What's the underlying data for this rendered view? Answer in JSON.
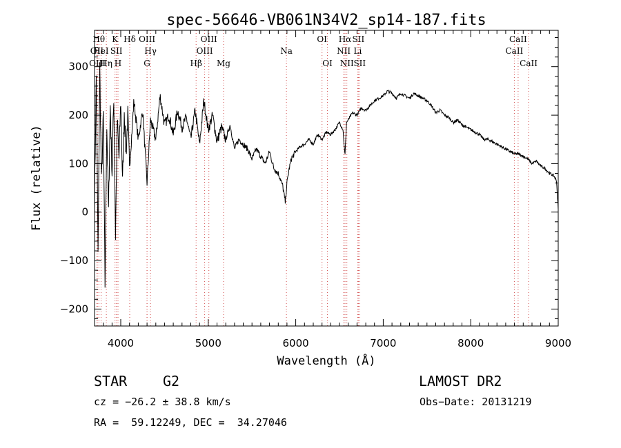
{
  "chart_data": {
    "type": "line",
    "title": "spec-56646-VB061N34V2_sp14-187.fits",
    "xlabel": "Wavelength (Å)",
    "ylabel": "Flux (relative)",
    "xlim": [
      3700,
      9000
    ],
    "ylim": [
      -235,
      375
    ],
    "xticks": [
      4000,
      5000,
      6000,
      7000,
      8000,
      9000
    ],
    "xtick_labels": [
      "4000",
      "5000",
      "6000",
      "7000",
      "8000",
      "9000"
    ],
    "yticks": [
      -200,
      -100,
      0,
      100,
      200,
      300
    ],
    "ytick_labels": [
      "−200",
      "−100",
      "0",
      "100",
      "200",
      "300"
    ],
    "grid": false,
    "series": [
      {
        "x": [
          3700,
          3720,
          3740,
          3760,
          3780,
          3800,
          3820,
          3840,
          3860,
          3880,
          3900,
          3920,
          3940,
          3960,
          3980,
          4000,
          4020,
          4040,
          4060,
          4080,
          4100,
          4150,
          4200,
          4250,
          4300,
          4340,
          4400,
          4450,
          4500,
          4550,
          4600,
          4650,
          4700,
          4750,
          4800,
          4850,
          4900,
          4950,
          5000,
          5050,
          5100,
          5150,
          5200,
          5250,
          5300,
          5350,
          5400,
          5450,
          5500,
          5550,
          5600,
          5650,
          5700,
          5750,
          5800,
          5850,
          5880,
          5900,
          5920,
          5950,
          6000,
          6050,
          6100,
          6150,
          6200,
          6250,
          6300,
          6350,
          6400,
          6450,
          6500,
          6540,
          6563,
          6580,
          6600,
          6650,
          6700,
          6750,
          6800,
          6850,
          6900,
          6950,
          7000,
          7050,
          7100,
          7150,
          7200,
          7250,
          7300,
          7350,
          7400,
          7450,
          7500,
          7550,
          7600,
          7650,
          7700,
          7750,
          7800,
          7850,
          7900,
          7950,
          8000,
          8050,
          8100,
          8150,
          8200,
          8250,
          8300,
          8350,
          8400,
          8450,
          8500,
          8550,
          8600,
          8650,
          8700,
          8750,
          8800,
          8850,
          8900,
          8950,
          8980,
          9000
        ],
        "y": [
          20,
          280,
          -90,
          300,
          60,
          200,
          -150,
          180,
          0,
          220,
          80,
          240,
          -50,
          190,
          110,
          230,
          60,
          210,
          120,
          200,
          90,
          230,
          150,
          210,
          60,
          190,
          150,
          240,
          180,
          200,
          160,
          210,
          175,
          195,
          150,
          210,
          140,
          230,
          170,
          200,
          145,
          175,
          150,
          180,
          130,
          150,
          140,
          130,
          110,
          130,
          115,
          100,
          125,
          90,
          80,
          55,
          20,
          60,
          85,
          110,
          125,
          135,
          140,
          150,
          140,
          160,
          150,
          165,
          160,
          170,
          185,
          170,
          115,
          185,
          190,
          205,
          200,
          215,
          210,
          220,
          230,
          235,
          240,
          250,
          245,
          235,
          245,
          240,
          235,
          245,
          240,
          235,
          230,
          220,
          205,
          210,
          200,
          195,
          185,
          190,
          180,
          175,
          170,
          165,
          160,
          150,
          150,
          145,
          140,
          135,
          130,
          125,
          120,
          120,
          115,
          110,
          100,
          105,
          95,
          90,
          80,
          75,
          65,
          5
        ]
      }
    ],
    "lines": [
      {
        "label": "OII",
        "x": 3727,
        "row": 1
      },
      {
        "label": "OIII",
        "x": 3732,
        "row": 2
      },
      {
        "label": "Hθ",
        "x": 3750,
        "row": 0
      },
      {
        "label": "HeI",
        "x": 3775,
        "row": 1
      },
      {
        "label": "Hη",
        "x": 3835,
        "row": 2
      },
      {
        "label": "K",
        "x": 3934,
        "row": 0
      },
      {
        "label": "SII",
        "x": 3950,
        "row": 1
      },
      {
        "label": "H",
        "x": 3968,
        "row": 2
      },
      {
        "label": "Hδ",
        "x": 4102,
        "row": 0
      },
      {
        "label": "OIII",
        "x": 4300,
        "row": 0
      },
      {
        "label": "Hγ",
        "x": 4340,
        "row": 1
      },
      {
        "label": "G",
        "x": 4300,
        "row": 2
      },
      {
        "label": "Hβ",
        "x": 4861,
        "row": 2
      },
      {
        "label": "OIII",
        "x": 4959,
        "row": 1
      },
      {
        "label": "OIII",
        "x": 5007,
        "row": 0
      },
      {
        "label": "Mg",
        "x": 5175,
        "row": 2
      },
      {
        "label": "Na",
        "x": 5893,
        "row": 1
      },
      {
        "label": "OI",
        "x": 6300,
        "row": 0
      },
      {
        "label": "OI",
        "x": 6363,
        "row": 2
      },
      {
        "label": "Hα",
        "x": 6563,
        "row": 0
      },
      {
        "label": "NII",
        "x": 6548,
        "row": 1
      },
      {
        "label": "NII",
        "x": 6584,
        "row": 2
      },
      {
        "label": "SII",
        "x": 6716,
        "row": 0
      },
      {
        "label": "Li",
        "x": 6708,
        "row": 1
      },
      {
        "label": "SII",
        "x": 6731,
        "row": 2
      },
      {
        "label": "CaII",
        "x": 8498,
        "row": 1
      },
      {
        "label": "CaII",
        "x": 8542,
        "row": 0
      },
      {
        "label": "CaII",
        "x": 8662,
        "row": 2
      }
    ]
  },
  "info": {
    "class": "STAR",
    "subclass": "G2",
    "survey": "LAMOST DR2",
    "cz": "cz = −26.2 ± 38.8 km/s",
    "obs_date": "Obs−Date: 20131219",
    "radec": "RA =  59.12249, DEC =  34.27046"
  }
}
